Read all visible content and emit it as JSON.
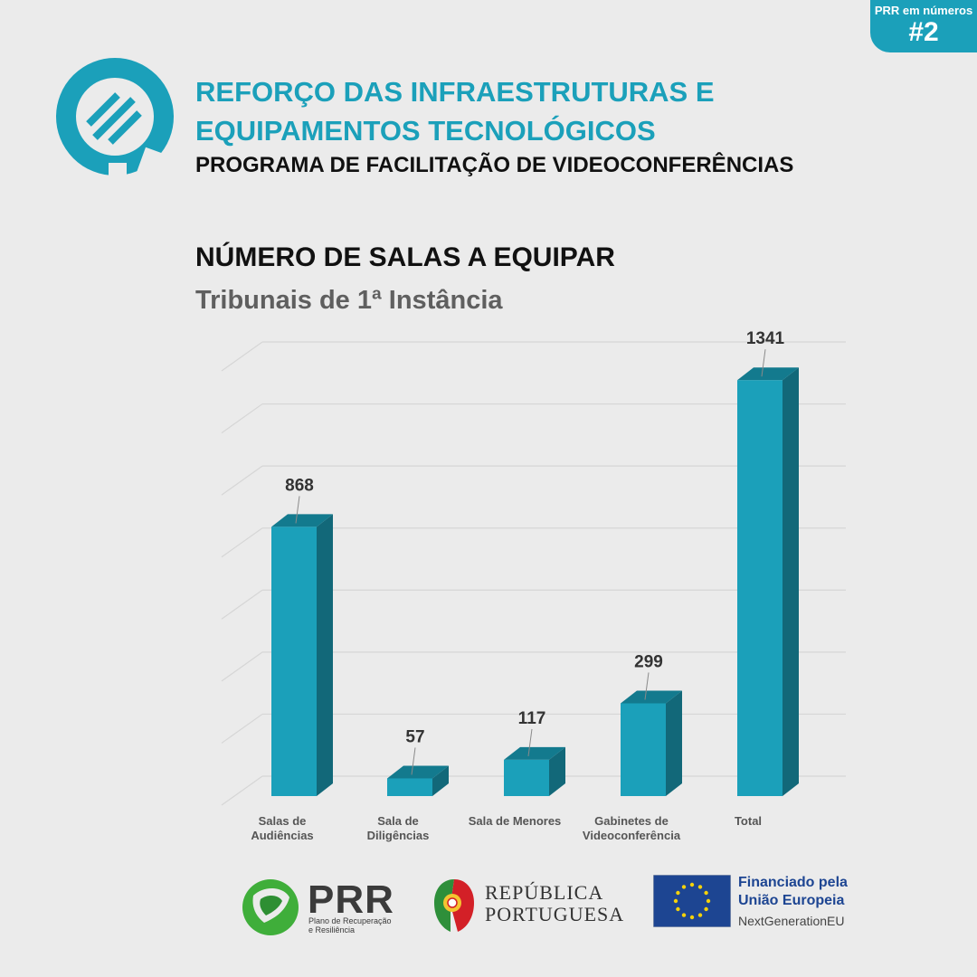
{
  "badge": {
    "line1": "PRR em números",
    "line2": "#2"
  },
  "header": {
    "title_line1": "REFORÇO DAS INFRAESTRUTURAS E",
    "title_line2": "EQUIPAMENTOS TECNOLÓGICOS",
    "subtitle": "PROGRAMA DE FACILITAÇÃO DE VIDEOCONFERÊNCIAS"
  },
  "chart_data": {
    "type": "bar",
    "title": "NÚMERO DE SALAS A EQUIPAR",
    "subtitle": "Tribunais de 1ª Instância",
    "categories": [
      [
        "Salas de",
        "Audiências"
      ],
      [
        "Sala de",
        "Diligências"
      ],
      [
        "Sala de Menores"
      ],
      [
        "Gabinetes de",
        "Videoconferência"
      ],
      [
        "Total"
      ]
    ],
    "values": [
      868,
      57,
      117,
      299,
      1341
    ],
    "ylim": [
      0,
      1400
    ],
    "grid": true,
    "legend": "none",
    "bar_color": "#1ba0ba"
  },
  "footer": {
    "prr": {
      "word": "PRR",
      "tagline1": "Plano de Recuperação",
      "tagline2": "e Resiliência"
    },
    "republica": {
      "line1": "REPÚBLICA",
      "line2": "PORTUGUESA"
    },
    "eu": {
      "line1": "Financiado pela",
      "line2": "União Europeia",
      "line3": "NextGenerationEU"
    }
  },
  "colors": {
    "accent": "#1ba0ba",
    "background": "#ebebeb",
    "eu_blue": "#1d4592"
  }
}
